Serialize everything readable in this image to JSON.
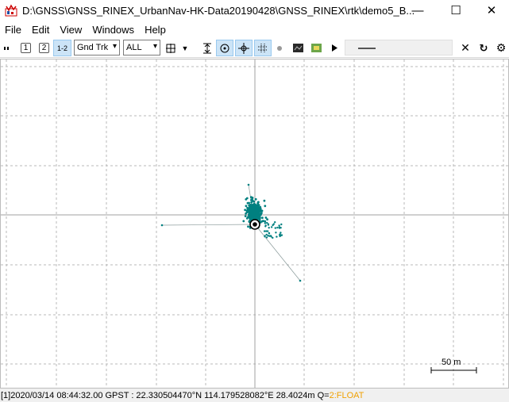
{
  "window": {
    "title": "D:\\GNSS\\GNSS_RINEX_UrbanNav-HK-Data20190428\\GNSS_RINEX\\rtk\\demo5_B...",
    "minimize_glyph": "—",
    "maximize_glyph": "☐",
    "close_glyph": "✕"
  },
  "menu": {
    "items": [
      "File",
      "Edit",
      "View",
      "Windows",
      "Help"
    ]
  },
  "toolbar": {
    "btn1_label": "1",
    "btn2_label": "2",
    "btn12_label": "1-2",
    "plot_type": "Gnd Trk",
    "quality_filter": "ALL"
  },
  "plot": {
    "scale_label": "50 m",
    "track_color": "#008080"
  },
  "status": {
    "text": "[1]2020/03/14 08:44:32.00 GPST :  22.330504470°N  114.179528082°E   28.4024m  Q=",
    "quality": "2:FLOAT",
    "quality_color": "#f0a000"
  }
}
